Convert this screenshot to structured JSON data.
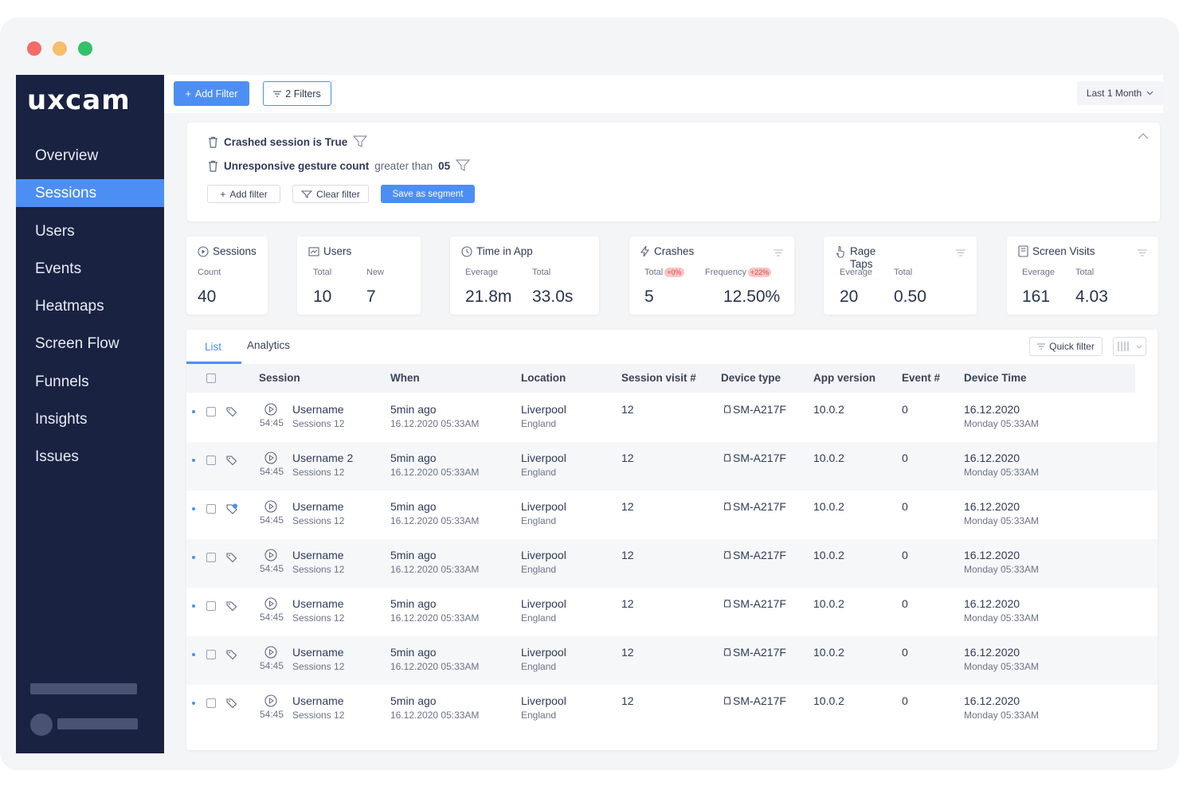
{
  "brand": {
    "logo": "uxcam"
  },
  "window_controls": {
    "colors": [
      "#f46b68",
      "#f6be6b",
      "#33c169"
    ]
  },
  "sidebar": {
    "items": [
      {
        "label": "Overview"
      },
      {
        "label": "Sessions"
      },
      {
        "label": "Users"
      },
      {
        "label": "Events"
      },
      {
        "label": "Heatmaps"
      },
      {
        "label": "Screen Flow"
      },
      {
        "label": "Funnels"
      },
      {
        "label": "Insights"
      },
      {
        "label": "Issues"
      }
    ],
    "active": "Sessions"
  },
  "toolbar": {
    "add_filter": "Add Filter",
    "filters": "2 Filters",
    "date_range": "Last 1 Month"
  },
  "filter_panel": {
    "row1": {
      "bold": "Crashed session is True"
    },
    "row2": {
      "bold": "Unresponsive gesture count",
      "muted": "greater than",
      "value": "05"
    },
    "add_filter": "Add filter",
    "clear_filter": "Clear filter",
    "save_segment": "Save as segment"
  },
  "metrics": {
    "sessions": {
      "title": "Sessions",
      "sub1": "Count",
      "val1": "40"
    },
    "users": {
      "title": "Users",
      "sub1": "Total",
      "sub2": "New",
      "val1": "10",
      "val2": "7"
    },
    "time": {
      "title": "Time in App",
      "sub1": "Everage",
      "sub2": "Total",
      "val1": "21.8m",
      "val2": "33.0s"
    },
    "crashes": {
      "title": "Crashes",
      "sub1": "Total",
      "pill1": "+0%",
      "sub2": "Frequency",
      "pill2": "+22%",
      "val1": "5",
      "val2": "12.50%"
    },
    "rage": {
      "title": "Rage Taps",
      "sub1": "Everage",
      "sub2": "Total",
      "val1": "20",
      "val2": "0.50"
    },
    "screen": {
      "title": "Screen Visits",
      "sub1": "Everage",
      "sub2": "Total",
      "val1": "161",
      "val2": "4.03"
    }
  },
  "table": {
    "tabs": [
      "List",
      "Analytics"
    ],
    "quick_filter": "Quick filter",
    "headers": [
      "Session",
      "When",
      "Location",
      "Session visit #",
      "Device type",
      "App version",
      "Event #",
      "Device Time"
    ],
    "rows": [
      {
        "user": "Username",
        "duration": "54:45",
        "sessions": "Sessions 12",
        "when": "5min ago",
        "when_date": "16.12.2020 05:33AM",
        "city": "Liverpool",
        "country": "England",
        "visit": "12",
        "device": "SM-A217F",
        "version": "10.0.2",
        "events": "0",
        "date": "16.12.2020",
        "day": "Monday 05:33AM"
      },
      {
        "user": "Username 2",
        "duration": "54:45",
        "sessions": "Sessions 12",
        "when": "5min ago",
        "when_date": "16.12.2020 05:33AM",
        "city": "Liverpool",
        "country": "England",
        "visit": "12",
        "device": "SM-A217F",
        "version": "10.0.2",
        "events": "0",
        "date": "16.12.2020",
        "day": "Monday 05:33AM"
      },
      {
        "user": "Username",
        "duration": "54:45",
        "sessions": "Sessions 12",
        "when": "5min ago",
        "when_date": "16.12.2020 05:33AM",
        "city": "Liverpool",
        "country": "England",
        "visit": "12",
        "device": "SM-A217F",
        "version": "10.0.2",
        "events": "0",
        "date": "16.12.2020",
        "day": "Monday 05:33AM"
      },
      {
        "user": "Username",
        "duration": "54:45",
        "sessions": "Sessions 12",
        "when": "5min ago",
        "when_date": "16.12.2020 05:33AM",
        "city": "Liverpool",
        "country": "England",
        "visit": "12",
        "device": "SM-A217F",
        "version": "10.0.2",
        "events": "0",
        "date": "16.12.2020",
        "day": "Monday 05:33AM"
      },
      {
        "user": "Username",
        "duration": "54:45",
        "sessions": "Sessions 12",
        "when": "5min ago",
        "when_date": "16.12.2020 05:33AM",
        "city": "Liverpool",
        "country": "England",
        "visit": "12",
        "device": "SM-A217F",
        "version": "10.0.2",
        "events": "0",
        "date": "16.12.2020",
        "day": "Monday 05:33AM"
      },
      {
        "user": "Username",
        "duration": "54:45",
        "sessions": "Sessions 12",
        "when": "5min ago",
        "when_date": "16.12.2020 05:33AM",
        "city": "Liverpool",
        "country": "England",
        "visit": "12",
        "device": "SM-A217F",
        "version": "10.0.2",
        "events": "0",
        "date": "16.12.2020",
        "day": "Monday 05:33AM"
      },
      {
        "user": "Username",
        "duration": "54:45",
        "sessions": "Sessions 12",
        "when": "5min ago",
        "when_date": "16.12.2020 05:33AM",
        "city": "Liverpool",
        "country": "England",
        "visit": "12",
        "device": "SM-A217F",
        "version": "10.0.2",
        "events": "0",
        "date": "16.12.2020",
        "day": "Monday 05:33AM"
      }
    ]
  },
  "colors": {
    "accent": "#4d8ef5",
    "sidebar_bg": "#1a2242",
    "alert": "#e24c4c"
  }
}
